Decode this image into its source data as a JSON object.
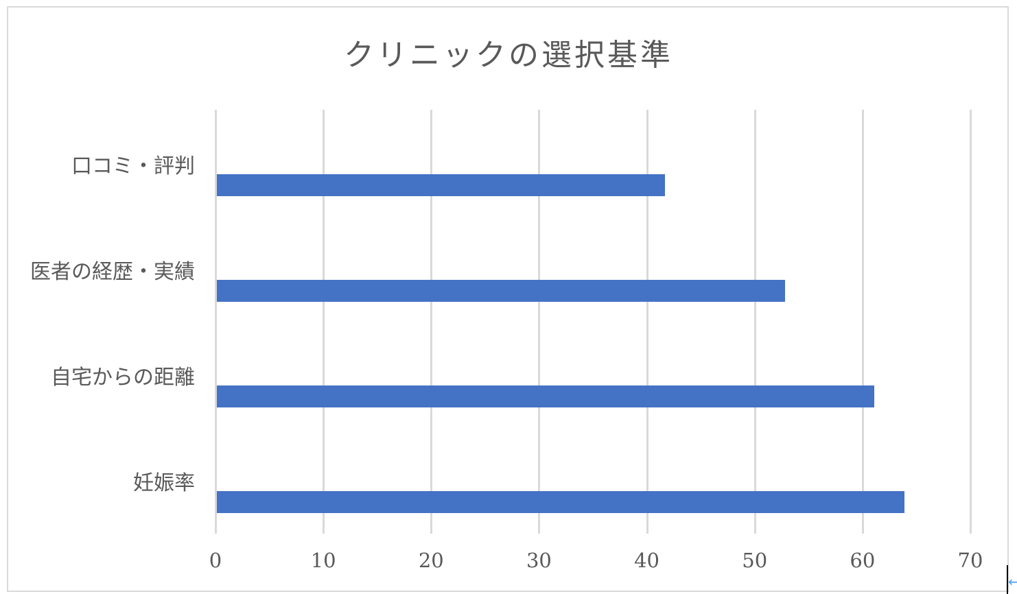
{
  "chart_data": {
    "type": "bar",
    "orientation": "horizontal",
    "title": "クリニックの選択基準",
    "categories": [
      "口コミ・評判",
      "医者の経歴・実績",
      "自宅からの距離",
      "妊娠率"
    ],
    "values": [
      41.7,
      52.8,
      61.1,
      63.9
    ],
    "xlabel": "",
    "ylabel": "",
    "xlim": [
      0,
      70
    ],
    "xticks": [
      "0",
      "10",
      "20",
      "30",
      "40",
      "50",
      "60",
      "70"
    ],
    "grid": "vertical",
    "legend": "none",
    "bar_color": "#4472c4"
  },
  "colors": {
    "bar": "#4472c4",
    "grid": "#d9d9d9",
    "text": "#595959",
    "border": "#d9d9d9"
  },
  "title": "クリニックの選択基準"
}
